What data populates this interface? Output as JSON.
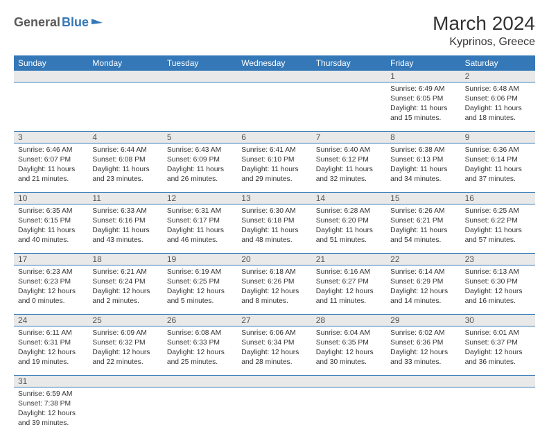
{
  "logo": {
    "general": "General",
    "blue": "Blue"
  },
  "header": {
    "title": "March 2024",
    "location": "Kyprinos, Greece"
  },
  "colors": {
    "header_bg": "#3478b8",
    "header_text": "#ffffff",
    "daynum_bg": "#e9e9e9",
    "divider": "#3478b8",
    "text": "#333333"
  },
  "dayNames": [
    "Sunday",
    "Monday",
    "Tuesday",
    "Wednesday",
    "Thursday",
    "Friday",
    "Saturday"
  ],
  "weeks": [
    [
      null,
      null,
      null,
      null,
      null,
      {
        "n": "1",
        "sunrise": "Sunrise: 6:49 AM",
        "sunset": "Sunset: 6:05 PM",
        "daylight": "Daylight: 11 hours and 15 minutes."
      },
      {
        "n": "2",
        "sunrise": "Sunrise: 6:48 AM",
        "sunset": "Sunset: 6:06 PM",
        "daylight": "Daylight: 11 hours and 18 minutes."
      }
    ],
    [
      {
        "n": "3",
        "sunrise": "Sunrise: 6:46 AM",
        "sunset": "Sunset: 6:07 PM",
        "daylight": "Daylight: 11 hours and 21 minutes."
      },
      {
        "n": "4",
        "sunrise": "Sunrise: 6:44 AM",
        "sunset": "Sunset: 6:08 PM",
        "daylight": "Daylight: 11 hours and 23 minutes."
      },
      {
        "n": "5",
        "sunrise": "Sunrise: 6:43 AM",
        "sunset": "Sunset: 6:09 PM",
        "daylight": "Daylight: 11 hours and 26 minutes."
      },
      {
        "n": "6",
        "sunrise": "Sunrise: 6:41 AM",
        "sunset": "Sunset: 6:10 PM",
        "daylight": "Daylight: 11 hours and 29 minutes."
      },
      {
        "n": "7",
        "sunrise": "Sunrise: 6:40 AM",
        "sunset": "Sunset: 6:12 PM",
        "daylight": "Daylight: 11 hours and 32 minutes."
      },
      {
        "n": "8",
        "sunrise": "Sunrise: 6:38 AM",
        "sunset": "Sunset: 6:13 PM",
        "daylight": "Daylight: 11 hours and 34 minutes."
      },
      {
        "n": "9",
        "sunrise": "Sunrise: 6:36 AM",
        "sunset": "Sunset: 6:14 PM",
        "daylight": "Daylight: 11 hours and 37 minutes."
      }
    ],
    [
      {
        "n": "10",
        "sunrise": "Sunrise: 6:35 AM",
        "sunset": "Sunset: 6:15 PM",
        "daylight": "Daylight: 11 hours and 40 minutes."
      },
      {
        "n": "11",
        "sunrise": "Sunrise: 6:33 AM",
        "sunset": "Sunset: 6:16 PM",
        "daylight": "Daylight: 11 hours and 43 minutes."
      },
      {
        "n": "12",
        "sunrise": "Sunrise: 6:31 AM",
        "sunset": "Sunset: 6:17 PM",
        "daylight": "Daylight: 11 hours and 46 minutes."
      },
      {
        "n": "13",
        "sunrise": "Sunrise: 6:30 AM",
        "sunset": "Sunset: 6:18 PM",
        "daylight": "Daylight: 11 hours and 48 minutes."
      },
      {
        "n": "14",
        "sunrise": "Sunrise: 6:28 AM",
        "sunset": "Sunset: 6:20 PM",
        "daylight": "Daylight: 11 hours and 51 minutes."
      },
      {
        "n": "15",
        "sunrise": "Sunrise: 6:26 AM",
        "sunset": "Sunset: 6:21 PM",
        "daylight": "Daylight: 11 hours and 54 minutes."
      },
      {
        "n": "16",
        "sunrise": "Sunrise: 6:25 AM",
        "sunset": "Sunset: 6:22 PM",
        "daylight": "Daylight: 11 hours and 57 minutes."
      }
    ],
    [
      {
        "n": "17",
        "sunrise": "Sunrise: 6:23 AM",
        "sunset": "Sunset: 6:23 PM",
        "daylight": "Daylight: 12 hours and 0 minutes."
      },
      {
        "n": "18",
        "sunrise": "Sunrise: 6:21 AM",
        "sunset": "Sunset: 6:24 PM",
        "daylight": "Daylight: 12 hours and 2 minutes."
      },
      {
        "n": "19",
        "sunrise": "Sunrise: 6:19 AM",
        "sunset": "Sunset: 6:25 PM",
        "daylight": "Daylight: 12 hours and 5 minutes."
      },
      {
        "n": "20",
        "sunrise": "Sunrise: 6:18 AM",
        "sunset": "Sunset: 6:26 PM",
        "daylight": "Daylight: 12 hours and 8 minutes."
      },
      {
        "n": "21",
        "sunrise": "Sunrise: 6:16 AM",
        "sunset": "Sunset: 6:27 PM",
        "daylight": "Daylight: 12 hours and 11 minutes."
      },
      {
        "n": "22",
        "sunrise": "Sunrise: 6:14 AM",
        "sunset": "Sunset: 6:29 PM",
        "daylight": "Daylight: 12 hours and 14 minutes."
      },
      {
        "n": "23",
        "sunrise": "Sunrise: 6:13 AM",
        "sunset": "Sunset: 6:30 PM",
        "daylight": "Daylight: 12 hours and 16 minutes."
      }
    ],
    [
      {
        "n": "24",
        "sunrise": "Sunrise: 6:11 AM",
        "sunset": "Sunset: 6:31 PM",
        "daylight": "Daylight: 12 hours and 19 minutes."
      },
      {
        "n": "25",
        "sunrise": "Sunrise: 6:09 AM",
        "sunset": "Sunset: 6:32 PM",
        "daylight": "Daylight: 12 hours and 22 minutes."
      },
      {
        "n": "26",
        "sunrise": "Sunrise: 6:08 AM",
        "sunset": "Sunset: 6:33 PM",
        "daylight": "Daylight: 12 hours and 25 minutes."
      },
      {
        "n": "27",
        "sunrise": "Sunrise: 6:06 AM",
        "sunset": "Sunset: 6:34 PM",
        "daylight": "Daylight: 12 hours and 28 minutes."
      },
      {
        "n": "28",
        "sunrise": "Sunrise: 6:04 AM",
        "sunset": "Sunset: 6:35 PM",
        "daylight": "Daylight: 12 hours and 30 minutes."
      },
      {
        "n": "29",
        "sunrise": "Sunrise: 6:02 AM",
        "sunset": "Sunset: 6:36 PM",
        "daylight": "Daylight: 12 hours and 33 minutes."
      },
      {
        "n": "30",
        "sunrise": "Sunrise: 6:01 AM",
        "sunset": "Sunset: 6:37 PM",
        "daylight": "Daylight: 12 hours and 36 minutes."
      }
    ],
    [
      {
        "n": "31",
        "sunrise": "Sunrise: 6:59 AM",
        "sunset": "Sunset: 7:38 PM",
        "daylight": "Daylight: 12 hours and 39 minutes."
      },
      null,
      null,
      null,
      null,
      null,
      null
    ]
  ]
}
